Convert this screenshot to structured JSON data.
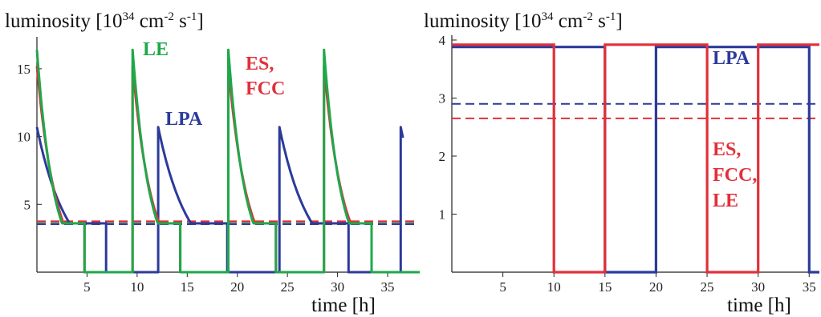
{
  "chart_data": [
    {
      "type": "line",
      "title_prefix": "luminosity [10",
      "title_exp1": "34",
      "title_unit1": " cm",
      "title_exp2": "-2",
      "title_unit2": " s",
      "title_exp3": "-1",
      "title_suffix": "]",
      "xlabel": "time [h]",
      "ylabel": "luminosity [10^34 cm^-2 s^-1]",
      "xlim": [
        0,
        37
      ],
      "ylim": [
        0,
        17
      ],
      "xticks": [
        5,
        10,
        15,
        20,
        25,
        30,
        35
      ],
      "yticks": [
        5,
        10,
        15
      ],
      "colors": {
        "LE": "#1fa84a",
        "ES_FCC": "#e0303a",
        "LPA": "#2c3a9a"
      },
      "series": [
        {
          "name": "LE",
          "label_key": "LE",
          "color": "#1fa84a",
          "cycle": {
            "peak": 16.4,
            "tau": 1.65,
            "fill": 4.75,
            "gap": 4.8,
            "floor": 3.6,
            "n": 4
          },
          "average": 3.7
        },
        {
          "name": "ES, FCC",
          "label_key": "ES_FCC",
          "color": "#e0303a",
          "cycle": {
            "peak": 15.2,
            "tau": 1.85,
            "fill": 4.75,
            "gap": 4.8,
            "floor": 3.6,
            "n": 4
          },
          "average": 3.75
        },
        {
          "name": "LPA",
          "label_key": "LPA",
          "color": "#2c3a9a",
          "cycle": {
            "peak": 10.7,
            "tau": 3.0,
            "fill": 6.9,
            "gap": 5.2,
            "floor": 3.6,
            "n": 4
          },
          "average": 3.55
        }
      ],
      "labels": {
        "LE": "LE",
        "ES_FCC_1": "ES,",
        "ES_FCC_2": "FCC",
        "LPA": "LPA"
      }
    },
    {
      "type": "line",
      "title_prefix": "luminosity [10",
      "title_exp1": "34",
      "title_unit1": " cm",
      "title_exp2": "-2",
      "title_unit2": " s",
      "title_exp3": "-1",
      "title_suffix": "]",
      "xlabel": "time [h]",
      "ylabel": "luminosity [10^34 cm^-2 s^-1]",
      "xlim": [
        0,
        36
      ],
      "ylim": [
        0,
        4
      ],
      "xticks": [
        5,
        10,
        15,
        20,
        25,
        30,
        35
      ],
      "yticks": [
        1,
        2,
        3,
        4
      ],
      "series": [
        {
          "name": "LPA",
          "color": "#2c3a9a",
          "points": [
            [
              0,
              3.88
            ],
            [
              15,
              3.88
            ],
            [
              15,
              0
            ],
            [
              20,
              0
            ],
            [
              20,
              3.88
            ],
            [
              35,
              3.88
            ],
            [
              35,
              0
            ],
            [
              36,
              0
            ]
          ],
          "average": 2.9
        },
        {
          "name": "ES, FCC, LE",
          "color": "#e0303a",
          "points": [
            [
              0,
              3.92
            ],
            [
              10,
              3.92
            ],
            [
              10,
              0
            ],
            [
              15,
              0
            ],
            [
              15,
              3.92
            ],
            [
              25,
              3.92
            ],
            [
              25,
              0
            ],
            [
              30,
              0
            ],
            [
              30,
              3.92
            ],
            [
              36,
              3.92
            ]
          ],
          "average": 2.65
        }
      ],
      "labels": {
        "LPA": "LPA",
        "ES_FCC_LE_1": "ES,",
        "ES_FCC_LE_2": "FCC,",
        "ES_FCC_LE_3": "LE"
      }
    }
  ]
}
